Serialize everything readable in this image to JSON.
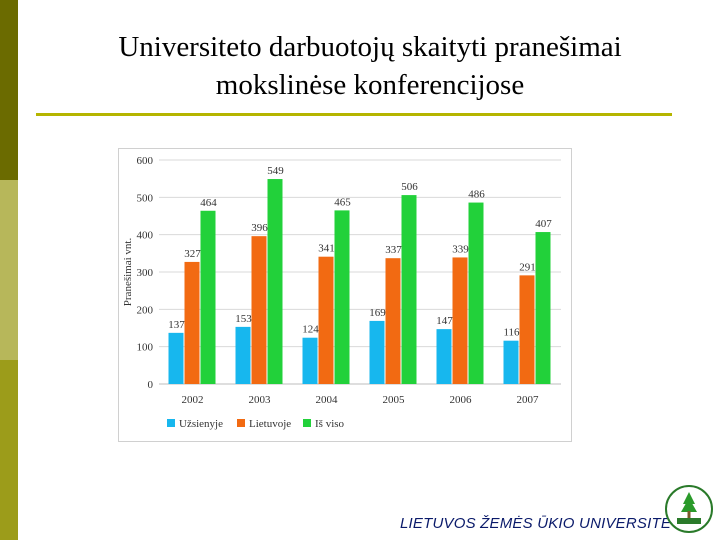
{
  "slide": {
    "title_line1": "Universiteto darbuotojų skaityti pranešimai",
    "title_line2": "mokslinėse konferencijose",
    "footer": "LIETUVOS ŽEMĖS ŪKIO UNIVERSITETAS"
  },
  "colors": {
    "accent_dark": "#6b6b00",
    "accent_light": "#b5b500"
  },
  "chart_data": {
    "type": "bar",
    "categories": [
      "2002",
      "2003",
      "2004",
      "2005",
      "2006",
      "2007"
    ],
    "series": [
      {
        "name": "Užsienyje",
        "color": "#17b7ee",
        "values": [
          137,
          153,
          124,
          169,
          147,
          116
        ]
      },
      {
        "name": "Lietuvoje",
        "color": "#f26a12",
        "values": [
          327,
          396,
          341,
          337,
          339,
          291
        ]
      },
      {
        "name": "Iš viso",
        "color": "#22d13a",
        "values": [
          464,
          549,
          465,
          506,
          486,
          407
        ]
      }
    ],
    "ylabel": "Pranešimai vnt.",
    "ylim": [
      0,
      600
    ],
    "yticks": [
      0,
      100,
      200,
      300,
      400,
      500,
      600
    ],
    "grid": true,
    "data_labels": true,
    "legend": "bottom"
  }
}
